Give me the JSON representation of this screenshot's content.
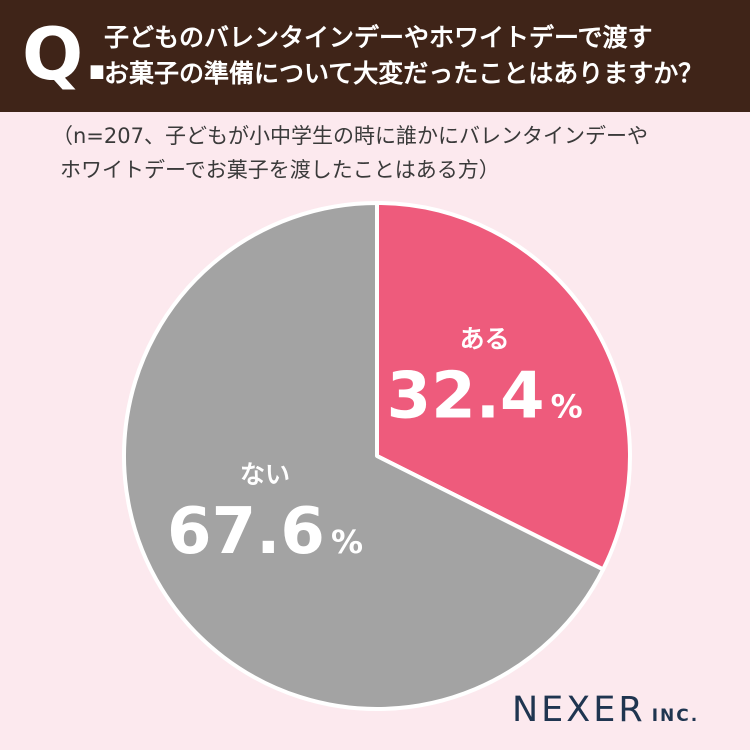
{
  "header": {
    "q_label": "Q.",
    "question_line1": "子どものバレンタインデーやホワイトデーで渡す",
    "question_line2": "お菓子の準備について大変だったことはありますか？"
  },
  "note": {
    "line1": "（n=207、子どもが小中学生の時に誰かにバレンタインデーや",
    "line2": "ホワイトデーでお菓子を渡したことはある方）"
  },
  "chart_data": {
    "type": "pie",
    "unit": "%",
    "slices": [
      {
        "label": "ある",
        "value": 32.4,
        "color": "#ee5b7c"
      },
      {
        "label": "ない",
        "value": 67.6,
        "color": "#a3a3a3"
      }
    ]
  },
  "logo": {
    "main": "NEXER",
    "suffix": "INC."
  }
}
